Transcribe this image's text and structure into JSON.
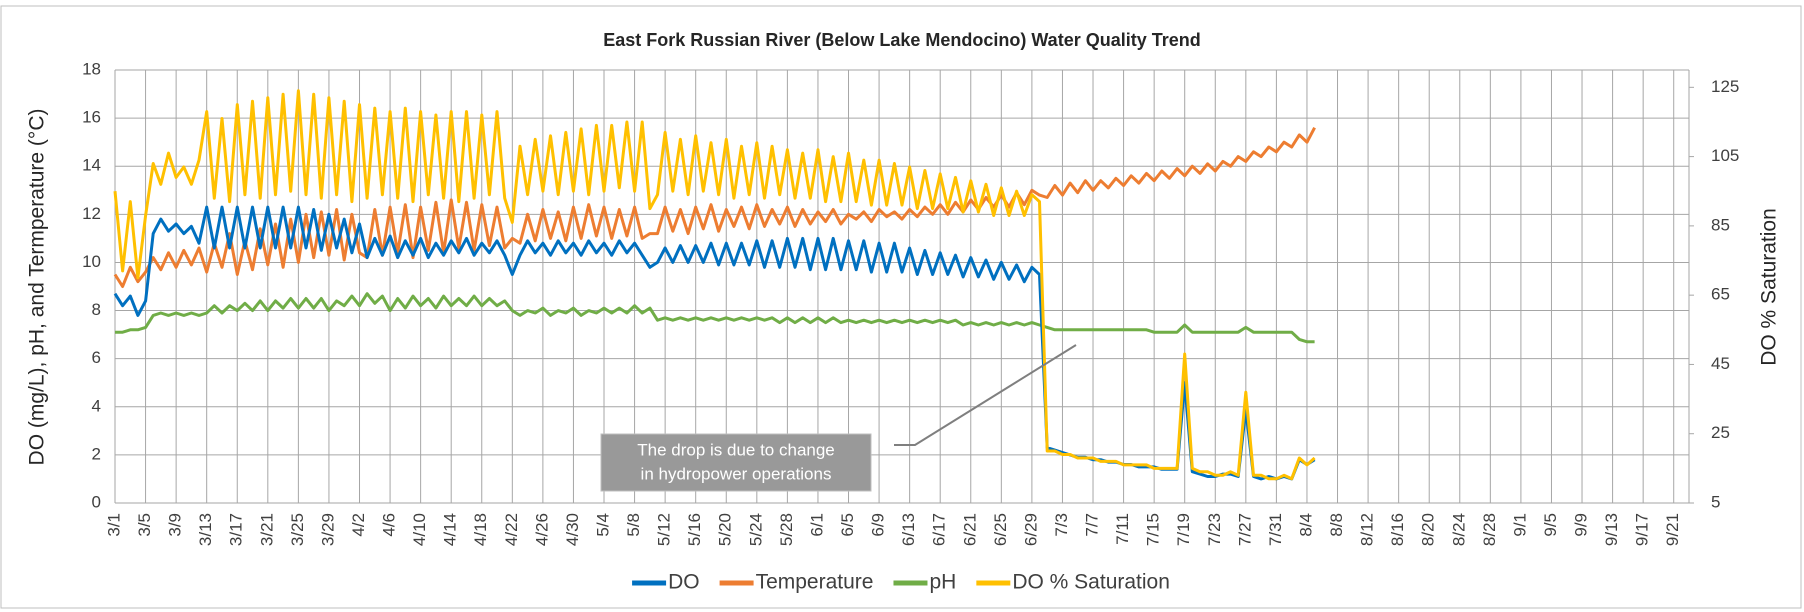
{
  "chart_data": {
    "type": "line",
    "title": "East Fork Russian River (Below Lake Mendocino) Water Quality Trend",
    "ylabel": "DO (mg/L), pH, and Termperature (°C)",
    "y2label": "DO % Saturation",
    "annotation": [
      "The drop is due to change",
      "in hydropower operations"
    ],
    "categories": [
      "3/1",
      null,
      null,
      null,
      "3/5",
      null,
      null,
      null,
      "3/9",
      null,
      null,
      null,
      "3/13",
      null,
      null,
      null,
      "3/17",
      null,
      null,
      null,
      "3/21",
      null,
      null,
      null,
      "3/25",
      null,
      null,
      null,
      "3/29",
      null,
      null,
      null,
      "4/2",
      null,
      null,
      null,
      "4/6",
      null,
      null,
      null,
      "4/10",
      null,
      null,
      null,
      "4/14",
      null,
      null,
      null,
      "4/18",
      null,
      null,
      null,
      "4/22",
      null,
      null,
      null,
      "4/26",
      null,
      null,
      null,
      "4/30",
      null,
      null,
      null,
      "5/4",
      null,
      null,
      null,
      "5/8",
      null,
      null,
      null,
      "5/12",
      null,
      null,
      null,
      "5/16",
      null,
      null,
      null,
      "5/20",
      null,
      null,
      null,
      "5/24",
      null,
      null,
      null,
      "5/28",
      null,
      null,
      null,
      "6/1",
      null,
      null,
      null,
      "6/5",
      null,
      null,
      null,
      "6/9",
      null,
      null,
      null,
      "6/13",
      null,
      null,
      null,
      "6/17",
      null,
      null,
      null,
      "6/21",
      null,
      null,
      null,
      "6/25",
      null,
      null,
      null,
      "6/29",
      null,
      null,
      null,
      "7/3",
      null,
      null,
      null,
      "7/7",
      null,
      null,
      null,
      "7/11",
      null,
      null,
      null,
      "7/15",
      null,
      null,
      null,
      "7/19",
      null,
      null,
      null,
      "7/23",
      null,
      null,
      null,
      "7/27",
      null,
      null,
      null,
      "7/31",
      null,
      null,
      null,
      "8/4",
      null,
      null,
      null,
      "8/8",
      null,
      null,
      null,
      "8/12",
      null,
      null,
      null,
      "8/16",
      null,
      null,
      null,
      "8/20",
      null,
      null,
      null,
      "8/24",
      null,
      null,
      null,
      "8/28",
      null,
      null,
      null,
      "9/1",
      null,
      null,
      null,
      "9/5",
      null,
      null,
      null,
      "9/9",
      null,
      null,
      null,
      "9/13",
      null,
      null,
      null,
      "9/17",
      null,
      null,
      null,
      "9/21",
      null
    ],
    "series": [
      {
        "name": "DO",
        "color": "#0070c0",
        "values": [
          8.7,
          8.2,
          8.6,
          7.8,
          8.4,
          11.2,
          11.8,
          11.3,
          11.6,
          11.2,
          11.5,
          10.8,
          12.3,
          10.6,
          12.3,
          10.6,
          12.3,
          10.6,
          12.3,
          10.6,
          12.3,
          10.6,
          12.3,
          10.6,
          12.3,
          10.6,
          12.2,
          10.5,
          12.0,
          10.6,
          11.8,
          10.4,
          11.6,
          10.2,
          11.0,
          10.3,
          11.1,
          10.2,
          10.9,
          10.3,
          11.0,
          10.2,
          10.8,
          10.3,
          10.9,
          10.4,
          11.0,
          10.3,
          10.8,
          10.4,
          10.9,
          10.3,
          9.5,
          10.3,
          10.9,
          10.4,
          10.8,
          10.3,
          10.9,
          10.4,
          10.8,
          10.3,
          10.9,
          10.4,
          10.8,
          10.3,
          10.9,
          10.4,
          10.8,
          10.3,
          9.8,
          10.0,
          10.6,
          10.0,
          10.7,
          10.0,
          10.7,
          10.0,
          10.8,
          9.9,
          10.8,
          9.9,
          10.8,
          9.9,
          10.9,
          9.8,
          10.9,
          9.8,
          11.0,
          9.8,
          11.0,
          9.7,
          11.0,
          9.7,
          11.0,
          9.7,
          10.9,
          9.7,
          10.9,
          9.6,
          10.8,
          9.6,
          10.8,
          9.6,
          10.6,
          9.5,
          10.5,
          9.5,
          10.4,
          9.5,
          10.3,
          9.4,
          10.2,
          9.4,
          10.1,
          9.3,
          10.0,
          9.3,
          9.9,
          9.2,
          9.8,
          9.5,
          2.3,
          2.2,
          2.1,
          2.0,
          1.9,
          1.9,
          1.8,
          1.8,
          1.7,
          1.7,
          1.6,
          1.6,
          1.5,
          1.5,
          1.5,
          1.4,
          1.4,
          1.4,
          5.0,
          1.3,
          1.2,
          1.1,
          1.1,
          1.2,
          1.2,
          1.1,
          3.9,
          1.1,
          1.0,
          1.1,
          1.0,
          1.1,
          1.0,
          1.8,
          1.6,
          1.8,
          null,
          null,
          null,
          null,
          null,
          null,
          null,
          null,
          null,
          null,
          null,
          null,
          null,
          null,
          null,
          null,
          null,
          null,
          null,
          null,
          null,
          null,
          null,
          null,
          null,
          null,
          null,
          null,
          null,
          null,
          null,
          null,
          null,
          null,
          null,
          null,
          null,
          null,
          null,
          null,
          null,
          null,
          null,
          null,
          null,
          null,
          null,
          null
        ]
      },
      {
        "name": "Temperature",
        "color": "#ed7d31",
        "values": [
          9.5,
          9.0,
          9.8,
          9.2,
          9.6,
          10.2,
          9.7,
          10.4,
          9.8,
          10.5,
          9.9,
          10.6,
          9.6,
          10.8,
          9.8,
          11.2,
          9.5,
          10.9,
          9.7,
          11.4,
          9.9,
          11.6,
          9.8,
          11.8,
          10.0,
          12.0,
          10.2,
          12.1,
          10.3,
          12.2,
          10.1,
          12.0,
          10.4,
          10.2,
          12.2,
          10.3,
          12.3,
          10.4,
          12.4,
          10.2,
          12.3,
          10.5,
          12.5,
          10.4,
          12.6,
          10.6,
          12.5,
          10.5,
          12.4,
          10.7,
          12.3,
          10.6,
          11.0,
          10.8,
          12.0,
          10.9,
          12.2,
          11.0,
          12.1,
          10.9,
          12.3,
          11.0,
          12.4,
          11.1,
          12.3,
          11.0,
          12.2,
          11.1,
          12.3,
          11.0,
          11.2,
          11.2,
          12.3,
          11.3,
          12.2,
          11.2,
          12.3,
          11.4,
          12.4,
          11.3,
          12.2,
          11.5,
          12.3,
          11.4,
          12.4,
          11.5,
          12.2,
          11.6,
          12.3,
          11.5,
          12.2,
          11.6,
          12.1,
          11.7,
          12.2,
          11.6,
          12.0,
          11.8,
          12.1,
          11.7,
          12.2,
          11.9,
          12.1,
          11.8,
          12.2,
          11.9,
          12.3,
          12.0,
          12.4,
          12.0,
          12.5,
          12.1,
          12.6,
          12.2,
          12.7,
          12.3,
          12.8,
          12.3,
          12.9,
          12.4,
          13.0,
          12.8,
          12.7,
          13.2,
          12.8,
          13.3,
          12.9,
          13.4,
          13.0,
          13.4,
          13.1,
          13.5,
          13.2,
          13.6,
          13.3,
          13.7,
          13.4,
          13.8,
          13.5,
          13.9,
          13.6,
          14.0,
          13.7,
          14.1,
          13.8,
          14.2,
          14.0,
          14.4,
          14.2,
          14.6,
          14.4,
          14.8,
          14.6,
          15.0,
          14.8,
          15.3,
          15.0,
          15.6,
          null,
          null,
          null,
          null,
          null,
          null,
          null,
          null,
          null,
          null,
          null,
          null,
          null,
          null,
          null,
          null,
          null,
          null,
          null,
          null,
          null,
          null,
          null,
          null,
          null,
          null,
          null,
          null,
          null,
          null,
          null,
          null,
          null,
          null,
          null,
          null,
          null,
          null,
          null,
          null,
          null,
          null,
          null,
          null,
          null,
          null,
          null,
          null
        ]
      },
      {
        "name": "pH",
        "color": "#70ad47",
        "values": [
          7.1,
          7.1,
          7.2,
          7.2,
          7.3,
          7.8,
          7.9,
          7.8,
          7.9,
          7.8,
          7.9,
          7.8,
          7.9,
          8.2,
          7.9,
          8.2,
          8.0,
          8.3,
          8.0,
          8.4,
          8.0,
          8.4,
          8.1,
          8.5,
          8.1,
          8.5,
          8.1,
          8.5,
          8.0,
          8.4,
          8.2,
          8.6,
          8.2,
          8.7,
          8.3,
          8.6,
          8.0,
          8.5,
          8.1,
          8.6,
          8.2,
          8.5,
          8.1,
          8.6,
          8.2,
          8.5,
          8.2,
          8.6,
          8.2,
          8.5,
          8.2,
          8.4,
          8.0,
          7.8,
          8.0,
          7.9,
          8.1,
          7.8,
          8.0,
          7.9,
          8.1,
          7.8,
          8.0,
          7.9,
          8.1,
          7.9,
          8.1,
          7.9,
          8.2,
          7.9,
          8.1,
          7.6,
          7.7,
          7.6,
          7.7,
          7.6,
          7.7,
          7.6,
          7.7,
          7.6,
          7.7,
          7.6,
          7.7,
          7.6,
          7.7,
          7.6,
          7.7,
          7.5,
          7.7,
          7.5,
          7.7,
          7.5,
          7.7,
          7.5,
          7.7,
          7.5,
          7.6,
          7.5,
          7.6,
          7.5,
          7.6,
          7.5,
          7.6,
          7.5,
          7.6,
          7.5,
          7.6,
          7.5,
          7.6,
          7.5,
          7.6,
          7.4,
          7.5,
          7.4,
          7.5,
          7.4,
          7.5,
          7.4,
          7.5,
          7.4,
          7.5,
          7.4,
          7.3,
          7.2,
          7.2,
          7.2,
          7.2,
          7.2,
          7.2,
          7.2,
          7.2,
          7.2,
          7.2,
          7.2,
          7.2,
          7.2,
          7.1,
          7.1,
          7.1,
          7.1,
          7.4,
          7.1,
          7.1,
          7.1,
          7.1,
          7.1,
          7.1,
          7.1,
          7.3,
          7.1,
          7.1,
          7.1,
          7.1,
          7.1,
          7.1,
          6.8,
          6.7,
          6.7,
          null,
          null,
          null,
          null,
          null,
          null,
          null,
          null,
          null,
          null,
          null,
          null,
          null,
          null,
          null,
          null,
          null,
          null,
          null,
          null,
          null,
          null,
          null,
          null,
          null,
          null,
          null,
          null,
          null,
          null,
          null,
          null,
          null,
          null,
          null,
          null,
          null,
          null,
          null,
          null,
          null,
          null,
          null,
          null,
          null,
          null,
          null,
          null
        ]
      },
      {
        "name": "DO % Saturation",
        "color": "#ffc000",
        "axis": "y2",
        "values": [
          95,
          72,
          92,
          70,
          88,
          103,
          97,
          106,
          99,
          102,
          97,
          104,
          118,
          93,
          116,
          92,
          120,
          94,
          121,
          93,
          122,
          94,
          123,
          95,
          124,
          94,
          123,
          93,
          122,
          94,
          121,
          92,
          120,
          93,
          119,
          94,
          118,
          93,
          119,
          92,
          118,
          94,
          117,
          93,
          118,
          92,
          118,
          93,
          117,
          94,
          118,
          93,
          86,
          108,
          94,
          110,
          95,
          111,
          94,
          112,
          95,
          113,
          94,
          114,
          95,
          114,
          96,
          115,
          95,
          115,
          90,
          94,
          112,
          95,
          110,
          94,
          111,
          95,
          109,
          94,
          110,
          93,
          108,
          94,
          109,
          93,
          108,
          94,
          107,
          93,
          106,
          93,
          107,
          92,
          105,
          92,
          106,
          92,
          104,
          91,
          104,
          91,
          103,
          91,
          102,
          90,
          101,
          90,
          100,
          90,
          99,
          89,
          98,
          89,
          97,
          88,
          96,
          88,
          95,
          88,
          94,
          92,
          20,
          20,
          19,
          19,
          18,
          18,
          18,
          17,
          17,
          17,
          16,
          16,
          16,
          16,
          15,
          15,
          15,
          15,
          48,
          15,
          14,
          14,
          13,
          13,
          14,
          13,
          37,
          13,
          13,
          12,
          12,
          13,
          12,
          18,
          16,
          18,
          null,
          null,
          null,
          null,
          null,
          null,
          null,
          null,
          null,
          null,
          null,
          null,
          null,
          null,
          null,
          null,
          null,
          null,
          null,
          null,
          null,
          null,
          null,
          null,
          null,
          null,
          null,
          null,
          null,
          null,
          null,
          null,
          null,
          null,
          null,
          null,
          null,
          null,
          null,
          null,
          null,
          null,
          null,
          null,
          null,
          null,
          null,
          null
        ]
      }
    ],
    "ylim": [
      0,
      18
    ],
    "yticks": [
      0,
      2,
      4,
      6,
      8,
      10,
      12,
      14,
      16,
      18
    ],
    "y2lim": [
      5,
      130
    ],
    "y2ticks": [
      5,
      25,
      45,
      65,
      85,
      105,
      125
    ],
    "grid": true,
    "legend": "bottom"
  }
}
